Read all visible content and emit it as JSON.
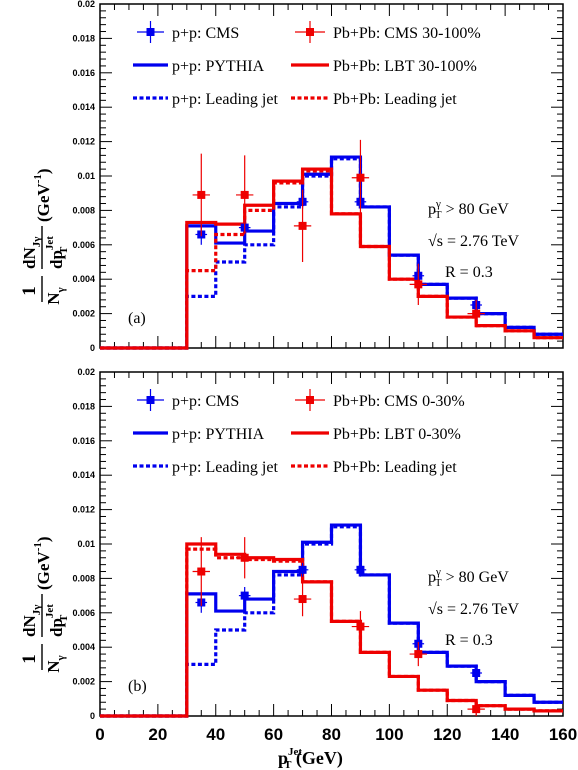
{
  "colors": {
    "pp": "#0000ee",
    "pb": "#ee0000",
    "axis": "#000000"
  },
  "x_axis": {
    "range": [
      0,
      160
    ],
    "tick_values": [
      0,
      20,
      40,
      60,
      80,
      100,
      120,
      140,
      160
    ],
    "tick_labels": [
      "0",
      "20",
      "40",
      "60",
      "80",
      "100",
      "120",
      "140",
      "160"
    ],
    "title_main": "p",
    "title_sub": "T",
    "title_sup": "Jet",
    "title_unit": " (GeV)"
  },
  "y_axis": {
    "title_num": "1",
    "title_den": "N",
    "title_den_sub": "γ",
    "title_frac_num": "dN",
    "title_frac_num_sub": "Jγ",
    "title_frac_den": "dp",
    "title_frac_den_sub": "T",
    "title_frac_den_sup": "Jet",
    "title_unit": "(GeV",
    "title_unit_sup": "-1",
    "title_unit_close": ")"
  },
  "chart_data": [
    {
      "type": "histogram",
      "panel_label": "(a)",
      "xlim": [
        0,
        160
      ],
      "ylim": [
        0,
        0.02
      ],
      "y_tick_values": [
        0,
        0.002,
        0.004,
        0.006,
        0.008,
        0.01,
        0.012,
        0.014,
        0.016,
        0.018,
        0.02
      ],
      "y_tick_labels": [
        "0",
        "0.002",
        "0.004",
        "0.006",
        "0.008",
        "0.01",
        "0.012",
        "0.014",
        "0.016",
        "0.018",
        "0.02"
      ],
      "legend": {
        "pp_cms": "p+p: CMS",
        "pb_cms": "Pb+Pb: CMS 30-100%",
        "pp_pythia": "p+p: PYTHIA",
        "pb_lbt": "Pb+Pb: LBT 30-100%",
        "pp_lead": "p+p: Leading jet",
        "pb_lead": "Pb+Pb: Leading jet"
      },
      "annotations": {
        "pt_main": "p",
        "pt_sub": "T",
        "pt_sup": "γ",
        "pt_cut": " > 80 GeV",
        "sqrt_s": "√s = 2.76 TeV",
        "radius": "R = 0.3"
      },
      "bin_edges": [
        0,
        30,
        40,
        50,
        60,
        70,
        80,
        90,
        100,
        110,
        120,
        130,
        140,
        150,
        160
      ],
      "series": [
        {
          "key": "pp_pythia",
          "kind": "step",
          "style": "solid",
          "color": "pp",
          "values": [
            0,
            0.0071,
            0.0061,
            0.0068,
            0.0084,
            0.0101,
            0.0111,
            0.0082,
            0.0054,
            0.0037,
            0.0029,
            0.002,
            0.0012,
            0.0008
          ]
        },
        {
          "key": "pp_lead",
          "kind": "step",
          "style": "dotted",
          "color": "pp",
          "values": [
            0,
            0.003,
            0.005,
            0.006,
            0.0082,
            0.01,
            0.011,
            0.0082,
            0.0054,
            0.0037,
            0.0029,
            0.002,
            0.0012,
            0.0008
          ]
        },
        {
          "key": "pb_lbt",
          "kind": "step",
          "style": "solid",
          "color": "pb",
          "values": [
            0,
            0.0073,
            0.0072,
            0.0083,
            0.0097,
            0.0104,
            0.0078,
            0.0059,
            0.004,
            0.003,
            0.0018,
            0.0013,
            0.001,
            0.0006
          ]
        },
        {
          "key": "pb_lead",
          "kind": "step",
          "style": "dotted",
          "color": "pb",
          "values": [
            0,
            0.0045,
            0.0066,
            0.008,
            0.0096,
            0.0103,
            0.0078,
            0.0059,
            0.004,
            0.003,
            0.0018,
            0.0013,
            0.001,
            0.0006
          ]
        },
        {
          "key": "pp_cms",
          "kind": "points",
          "color": "pp",
          "points": [
            {
              "x": 35,
              "y": 0.0066,
              "ex": 2,
              "eyl": 0.0006,
              "eyh": 0.0006
            },
            {
              "x": 50,
              "y": 0.007,
              "ex": 2,
              "eyl": 0.0005,
              "eyh": 0.0005
            },
            {
              "x": 70,
              "y": 0.0085,
              "ex": 2,
              "eyl": 0.0004,
              "eyh": 0.0004
            },
            {
              "x": 90,
              "y": 0.0085,
              "ex": 2,
              "eyl": 0.0004,
              "eyh": 0.0004
            },
            {
              "x": 110,
              "y": 0.0042,
              "ex": 2,
              "eyl": 0.0004,
              "eyh": 0.0004
            },
            {
              "x": 130,
              "y": 0.0025,
              "ex": 2,
              "eyl": 0.0005,
              "eyh": 0.0005
            }
          ]
        },
        {
          "key": "pb_cms",
          "kind": "points",
          "color": "pb",
          "points": [
            {
              "x": 35,
              "y": 0.0089,
              "ex": 3,
              "eyl": 0.0024,
              "eyh": 0.0024
            },
            {
              "x": 50,
              "y": 0.0089,
              "ex": 3,
              "eyl": 0.0023,
              "eyh": 0.0023
            },
            {
              "x": 70,
              "y": 0.0071,
              "ex": 3,
              "eyl": 0.0021,
              "eyh": 0.0021
            },
            {
              "x": 90,
              "y": 0.0099,
              "ex": 3,
              "eyl": 0.0022,
              "eyh": 0.0022
            },
            {
              "x": 110,
              "y": 0.0037,
              "ex": 3,
              "eyl": 0.0012,
              "eyh": 0.0012
            },
            {
              "x": 130,
              "y": 0.002,
              "ex": 3,
              "eyl": 0.0008,
              "eyh": 0.0008
            }
          ]
        }
      ]
    },
    {
      "type": "histogram",
      "panel_label": "(b)",
      "xlim": [
        0,
        160
      ],
      "ylim": [
        0,
        0.02
      ],
      "y_tick_values": [
        0,
        0.002,
        0.004,
        0.006,
        0.008,
        0.01,
        0.012,
        0.014,
        0.016,
        0.018,
        0.02
      ],
      "y_tick_labels": [
        "0",
        "0.002",
        "0.004",
        "0.006",
        "0.008",
        "0.01",
        "0.012",
        "0.014",
        "0.016",
        "0.018",
        "0.02"
      ],
      "legend": {
        "pp_cms": "p+p: CMS",
        "pb_cms": "Pb+Pb: CMS 0-30%",
        "pp_pythia": "p+p: PYTHIA",
        "pb_lbt": "Pb+Pb: LBT 0-30%",
        "pp_lead": "p+p: Leading jet",
        "pb_lead": "Pb+Pb: Leading jet"
      },
      "annotations": {
        "pt_main": "p",
        "pt_sub": "T",
        "pt_sup": "γ",
        "pt_cut": " > 80 GeV",
        "sqrt_s": "√s = 2.76 TeV",
        "radius": "R = 0.3"
      },
      "bin_edges": [
        0,
        30,
        40,
        50,
        60,
        70,
        80,
        90,
        100,
        110,
        120,
        130,
        140,
        150,
        160
      ],
      "series": [
        {
          "key": "pp_pythia",
          "kind": "step",
          "style": "solid",
          "color": "pp",
          "values": [
            0,
            0.0071,
            0.0061,
            0.0068,
            0.0084,
            0.0101,
            0.0111,
            0.0082,
            0.0054,
            0.0037,
            0.0029,
            0.002,
            0.0012,
            0.0008
          ]
        },
        {
          "key": "pp_lead",
          "kind": "step",
          "style": "dotted",
          "color": "pp",
          "values": [
            0,
            0.003,
            0.005,
            0.006,
            0.0082,
            0.01,
            0.011,
            0.0082,
            0.0054,
            0.0037,
            0.0029,
            0.002,
            0.0012,
            0.0008
          ]
        },
        {
          "key": "pb_lbt",
          "kind": "step",
          "style": "solid",
          "color": "pb",
          "values": [
            0,
            0.01,
            0.0094,
            0.0092,
            0.0091,
            0.0078,
            0.0055,
            0.0037,
            0.0023,
            0.0015,
            0.0009,
            0.0006,
            0.0004,
            0.0003
          ]
        },
        {
          "key": "pb_lead",
          "kind": "step",
          "style": "dotted",
          "color": "pb",
          "values": [
            0,
            0.0097,
            0.0092,
            0.0091,
            0.009,
            0.0078,
            0.0055,
            0.0037,
            0.0023,
            0.0015,
            0.0009,
            0.0006,
            0.0004,
            0.0003
          ]
        },
        {
          "key": "pp_cms",
          "kind": "points",
          "color": "pp",
          "points": [
            {
              "x": 35,
              "y": 0.0066,
              "ex": 2,
              "eyl": 0.0006,
              "eyh": 0.0006
            },
            {
              "x": 50,
              "y": 0.007,
              "ex": 2,
              "eyl": 0.0005,
              "eyh": 0.0005
            },
            {
              "x": 70,
              "y": 0.0085,
              "ex": 2,
              "eyl": 0.0004,
              "eyh": 0.0004
            },
            {
              "x": 90,
              "y": 0.0085,
              "ex": 2,
              "eyl": 0.0004,
              "eyh": 0.0004
            },
            {
              "x": 110,
              "y": 0.0042,
              "ex": 2,
              "eyl": 0.0004,
              "eyh": 0.0004
            },
            {
              "x": 130,
              "y": 0.0025,
              "ex": 2,
              "eyl": 0.0005,
              "eyh": 0.0005
            }
          ]
        },
        {
          "key": "pb_cms",
          "kind": "points",
          "color": "pb",
          "points": [
            {
              "x": 35,
              "y": 0.0084,
              "ex": 3,
              "eyl": 0.002,
              "eyh": 0.002
            },
            {
              "x": 50,
              "y": 0.0092,
              "ex": 3,
              "eyl": 0.0012,
              "eyh": 0.0012
            },
            {
              "x": 70,
              "y": 0.0068,
              "ex": 3,
              "eyl": 0.001,
              "eyh": 0.001
            },
            {
              "x": 90,
              "y": 0.0052,
              "ex": 3,
              "eyl": 0.0009,
              "eyh": 0.0009
            },
            {
              "x": 110,
              "y": 0.0036,
              "ex": 3,
              "eyl": 0.0007,
              "eyh": 0.0007
            },
            {
              "x": 130,
              "y": 0.0004,
              "ex": 3,
              "eyl": 0.0004,
              "eyh": 0.0004
            }
          ]
        }
      ]
    }
  ]
}
